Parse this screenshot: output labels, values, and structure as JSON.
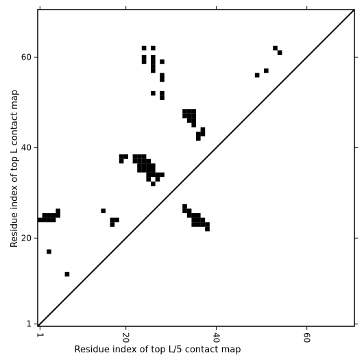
{
  "chart_data": {
    "type": "heatmap",
    "title": "",
    "xlabel": "Residue index of top L/5 contact map",
    "ylabel": "Residue index of top L contact map",
    "xlim": [
      0.5,
      70.5
    ],
    "ylim": [
      0.5,
      70.5
    ],
    "x_ticks": [
      1,
      20,
      40,
      60
    ],
    "y_ticks": [
      1,
      20,
      40,
      60
    ],
    "x_tick_labels": [
      "1",
      "20",
      "40",
      "60"
    ],
    "y_tick_labels": [
      "1",
      "20",
      "40",
      "60"
    ],
    "diagonal": true,
    "contact_color": "#000000",
    "background_color": "#ffffff",
    "contacts": [
      [
        24,
        62
      ],
      [
        26,
        62
      ],
      [
        24,
        60
      ],
      [
        26,
        60
      ],
      [
        24,
        59
      ],
      [
        26,
        59
      ],
      [
        28,
        59
      ],
      [
        26,
        58
      ],
      [
        26,
        57
      ],
      [
        28,
        56
      ],
      [
        28,
        55
      ],
      [
        26,
        52
      ],
      [
        28,
        52
      ],
      [
        28,
        51
      ],
      [
        53,
        62
      ],
      [
        54,
        61
      ],
      [
        51,
        57
      ],
      [
        49,
        56
      ],
      [
        33,
        48
      ],
      [
        34,
        48
      ],
      [
        35,
        48
      ],
      [
        33,
        47
      ],
      [
        34,
        47
      ],
      [
        35,
        47
      ],
      [
        34,
        46
      ],
      [
        35,
        46
      ],
      [
        35,
        45
      ],
      [
        37,
        44
      ],
      [
        36,
        43
      ],
      [
        37,
        43
      ],
      [
        36,
        42
      ],
      [
        19,
        38
      ],
      [
        20,
        38
      ],
      [
        22,
        38
      ],
      [
        23,
        38
      ],
      [
        24,
        38
      ],
      [
        19,
        37
      ],
      [
        22,
        37
      ],
      [
        23,
        37
      ],
      [
        24,
        37
      ],
      [
        25,
        37
      ],
      [
        23,
        36
      ],
      [
        24,
        36
      ],
      [
        25,
        36
      ],
      [
        26,
        36
      ],
      [
        23,
        35
      ],
      [
        24,
        35
      ],
      [
        25,
        35
      ],
      [
        26,
        35
      ],
      [
        25,
        34
      ],
      [
        26,
        34
      ],
      [
        27,
        34
      ],
      [
        28,
        34
      ],
      [
        25,
        33
      ],
      [
        27,
        33
      ],
      [
        26,
        32
      ],
      [
        1,
        24
      ],
      [
        2,
        24
      ],
      [
        3,
        24
      ],
      [
        4,
        24
      ],
      [
        2,
        25
      ],
      [
        3,
        25
      ],
      [
        4,
        25
      ],
      [
        5,
        25
      ],
      [
        5,
        26
      ],
      [
        3,
        17
      ],
      [
        7,
        12
      ],
      [
        15,
        26
      ],
      [
        17,
        24
      ],
      [
        18,
        24
      ],
      [
        17,
        23
      ],
      [
        33,
        27
      ],
      [
        33,
        26
      ],
      [
        34,
        26
      ],
      [
        34,
        25
      ],
      [
        35,
        25
      ],
      [
        36,
        25
      ],
      [
        35,
        24
      ],
      [
        36,
        24
      ],
      [
        37,
        24
      ],
      [
        35,
        23
      ],
      [
        36,
        23
      ],
      [
        37,
        23
      ],
      [
        38,
        23
      ],
      [
        38,
        22
      ]
    ]
  }
}
